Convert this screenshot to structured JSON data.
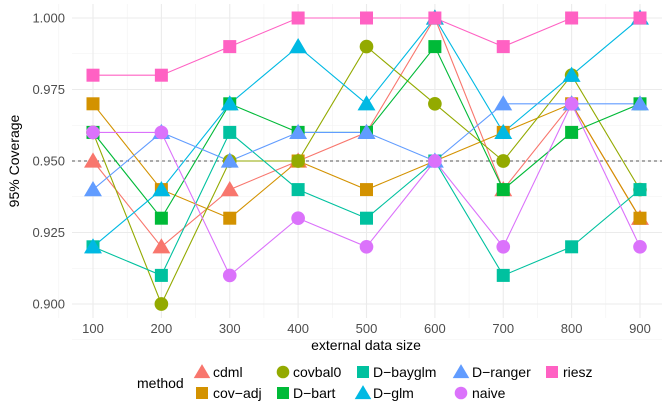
{
  "chart_data": {
    "type": "line",
    "xlabel": "external data size",
    "ylabel": "95% Coverage",
    "x": [
      100,
      200,
      300,
      400,
      500,
      600,
      700,
      800,
      900
    ],
    "x_ticks": [
      "100",
      "200",
      "300",
      "400",
      "500",
      "600",
      "700",
      "800",
      "900"
    ],
    "y_ticks": [
      "0.900",
      "0.925",
      "0.950",
      "0.975",
      "1.000"
    ],
    "ylim": [
      0.9,
      1.0
    ],
    "grid": true,
    "reference_line": {
      "y": 0.95,
      "style": "dashed"
    },
    "legend": {
      "title": "method",
      "placement": "bottom"
    },
    "series": [
      {
        "name": "cdml",
        "color": "#F8766D",
        "shape": "triangle",
        "values": [
          0.95,
          0.92,
          0.94,
          0.95,
          0.96,
          1.0,
          0.94,
          0.97,
          0.93
        ]
      },
      {
        "name": "cov−adj",
        "color": "#D39200",
        "shape": "square",
        "values": [
          0.97,
          0.94,
          0.93,
          0.95,
          0.94,
          0.95,
          0.96,
          0.97,
          0.93
        ]
      },
      {
        "name": "covbal0",
        "color": "#93AA00",
        "shape": "circle",
        "values": [
          0.96,
          0.9,
          0.95,
          0.95,
          0.99,
          0.97,
          0.95,
          0.98,
          0.94
        ]
      },
      {
        "name": "D−bart",
        "color": "#00BA38",
        "shape": "square",
        "values": [
          0.96,
          0.93,
          0.97,
          0.96,
          0.96,
          0.99,
          0.94,
          0.96,
          0.97
        ]
      },
      {
        "name": "D−bayglm",
        "color": "#00C19F",
        "shape": "square",
        "values": [
          0.92,
          0.91,
          0.96,
          0.94,
          0.93,
          0.95,
          0.91,
          0.92,
          0.94
        ]
      },
      {
        "name": "D−glm",
        "color": "#00B9E3",
        "shape": "triangle",
        "values": [
          0.92,
          0.94,
          0.97,
          0.99,
          0.97,
          1.0,
          0.96,
          0.98,
          1.0
        ]
      },
      {
        "name": "D−ranger",
        "color": "#619CFF",
        "shape": "triangle",
        "values": [
          0.94,
          0.96,
          0.95,
          0.96,
          0.96,
          0.95,
          0.97,
          0.97,
          0.97
        ]
      },
      {
        "name": "naive",
        "color": "#DB72FB",
        "shape": "circle",
        "values": [
          0.96,
          0.96,
          0.91,
          0.93,
          0.92,
          0.95,
          0.92,
          0.97,
          0.92
        ]
      },
      {
        "name": "riesz",
        "color": "#FF61C3",
        "shape": "square",
        "values": [
          0.98,
          0.98,
          0.99,
          1.0,
          1.0,
          1.0,
          0.99,
          1.0,
          1.0
        ]
      }
    ]
  }
}
